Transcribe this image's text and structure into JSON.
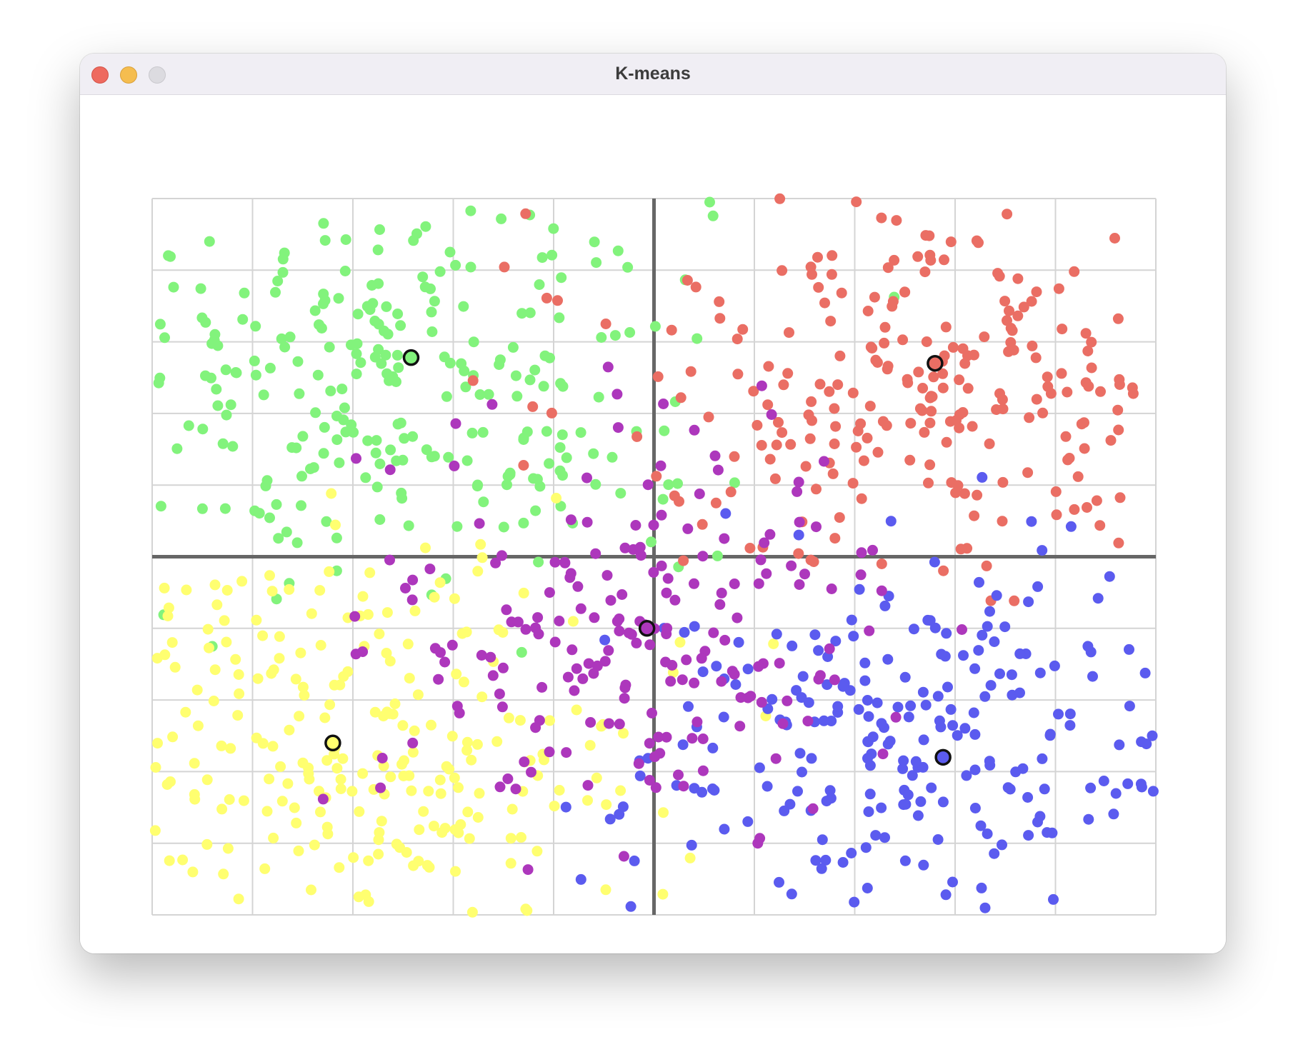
{
  "window": {
    "title": "K-means"
  },
  "colors": {
    "grid": "#d4d4d4",
    "axis": "#666666",
    "centroid_stroke": "#111111"
  },
  "chart_data": {
    "type": "scatter",
    "title": "",
    "xlabel": "",
    "ylabel": "",
    "xlim": [
      -5,
      5
    ],
    "ylim": [
      -5,
      5
    ],
    "grid": true,
    "grid_divisions": {
      "x": 10,
      "y": 10
    },
    "axes_through_origin": true,
    "series": [
      {
        "color": "#82f37c",
        "centroid": [
          -2.42,
          2.78
        ],
        "center": [
          -2.6,
          2.5
        ],
        "spread": [
          1.55,
          1.45
        ],
        "count": 260
      },
      {
        "color": "#ea6e64",
        "centroid": [
          2.8,
          2.7
        ],
        "center": [
          2.7,
          2.5
        ],
        "spread": [
          1.55,
          1.45
        ],
        "count": 240
      },
      {
        "color": "#ffff70",
        "centroid": [
          -3.2,
          -2.6
        ],
        "center": [
          -3.0,
          -2.6
        ],
        "spread": [
          1.45,
          1.35
        ],
        "count": 240
      },
      {
        "color": "#5b5bef",
        "centroid": [
          2.88,
          -2.8
        ],
        "center": [
          2.7,
          -2.7
        ],
        "spread": [
          1.55,
          1.35
        ],
        "count": 230
      },
      {
        "color": "#ad37bc",
        "centroid": [
          -0.07,
          -1.0
        ],
        "center": [
          -0.2,
          -1.0
        ],
        "spread": [
          1.25,
          1.4
        ],
        "count": 200
      }
    ]
  }
}
